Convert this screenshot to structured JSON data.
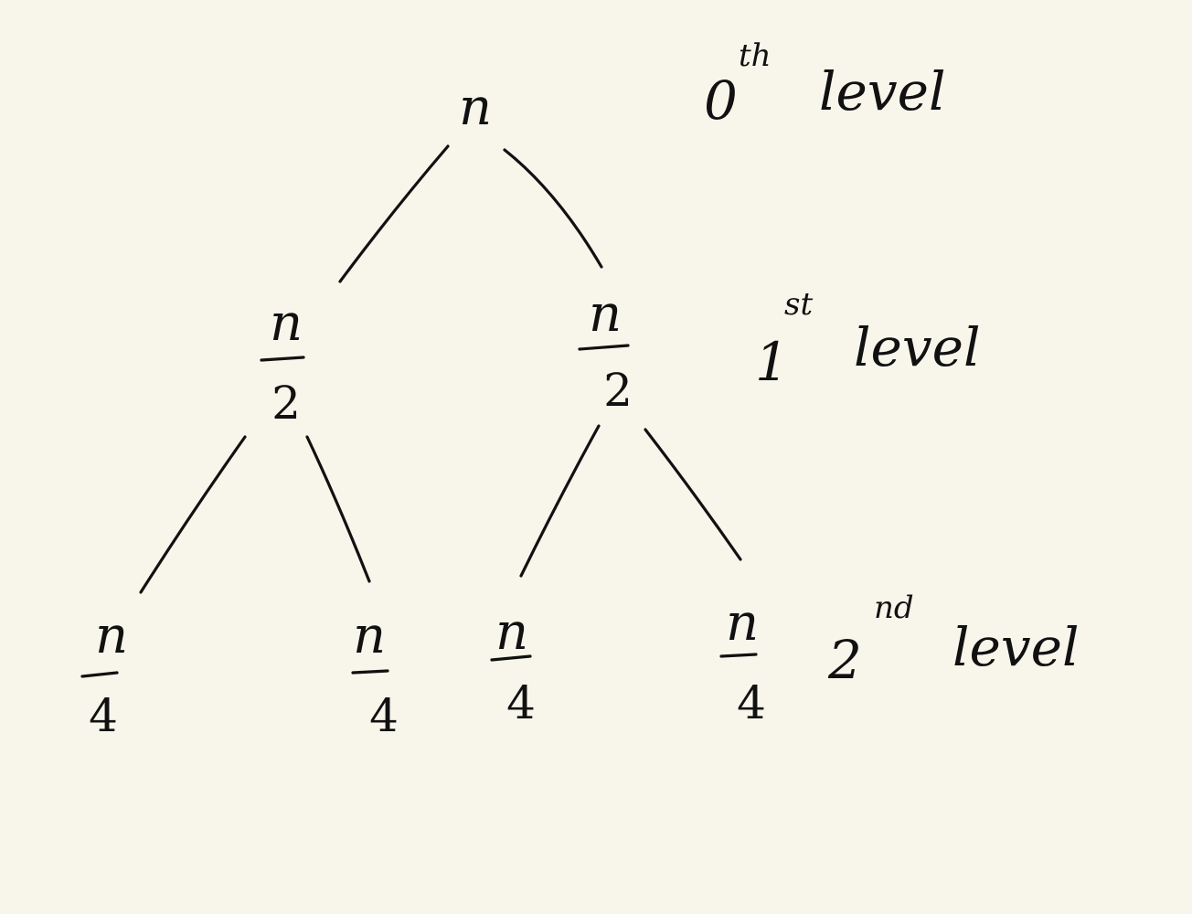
{
  "tree": {
    "levels": [
      {
        "index": "0",
        "suffix": "th",
        "word": "level",
        "nodes": [
          {
            "numerator": "n",
            "denominator": ""
          }
        ]
      },
      {
        "index": "1",
        "suffix": "st",
        "word": "level",
        "nodes": [
          {
            "numerator": "n",
            "denominator": "2"
          },
          {
            "numerator": "n",
            "denominator": "2"
          }
        ]
      },
      {
        "index": "2",
        "suffix": "nd",
        "word": "level",
        "nodes": [
          {
            "numerator": "n",
            "denominator": "4"
          },
          {
            "numerator": "n",
            "denominator": "4"
          },
          {
            "numerator": "n",
            "denominator": "4"
          },
          {
            "numerator": "n",
            "denominator": "4"
          }
        ]
      }
    ]
  },
  "colors": {
    "background": "#f8f6eb",
    "ink": "#111111"
  }
}
